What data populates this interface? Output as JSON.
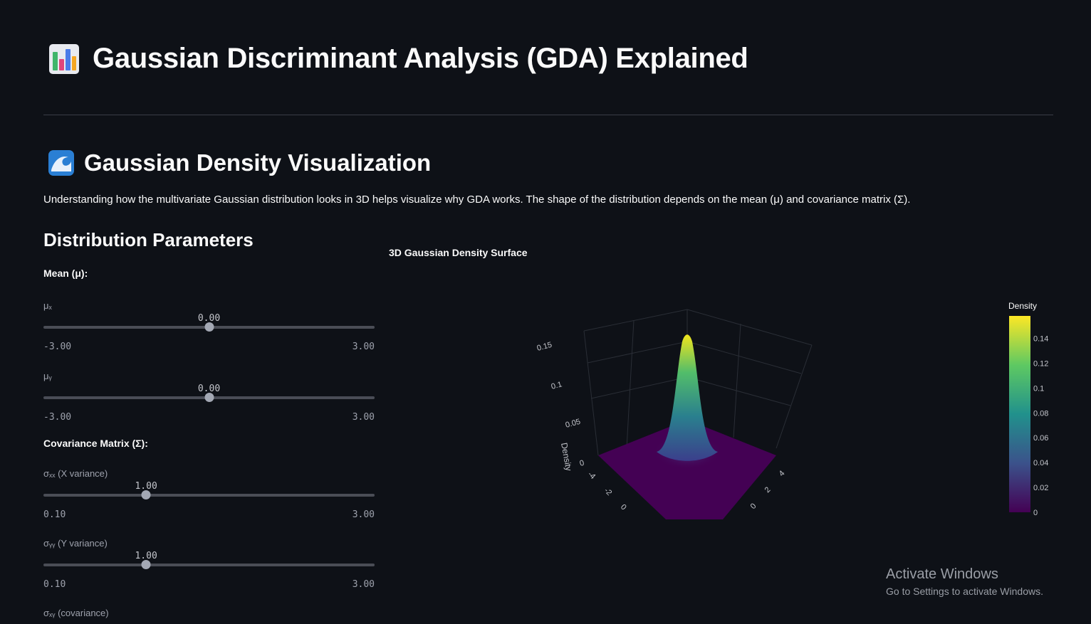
{
  "header": {
    "title": "Gaussian Discriminant Analysis (GDA) Explained",
    "icon": "bar-chart-icon"
  },
  "section": {
    "title": "Gaussian Density Visualization",
    "icon": "ocean-wave-icon",
    "intro": "Understanding how the multivariate Gaussian distribution looks in 3D helps visualize why GDA works. The shape of the distribution depends on the mean (μ) and covariance matrix (Σ)."
  },
  "params": {
    "title": "Distribution Parameters",
    "mean_heading": "Mean (μ):",
    "cov_heading": "Covariance Matrix (Σ):",
    "sliders": {
      "mu_x": {
        "label": "μₓ",
        "value": "0.00",
        "min": "-3.00",
        "max": "3.00",
        "fraction": 0.5
      },
      "mu_y": {
        "label": "μᵧ",
        "value": "0.00",
        "min": "-3.00",
        "max": "3.00",
        "fraction": 0.5
      },
      "sxx": {
        "label": "σₓₓ (X variance)",
        "value": "1.00",
        "min": "0.10",
        "max": "3.00",
        "fraction": 0.31
      },
      "syy": {
        "label": "σᵧᵧ (Y variance)",
        "value": "1.00",
        "min": "0.10",
        "max": "3.00",
        "fraction": 0.31
      },
      "sxy": {
        "label": "σₓᵧ (covariance)"
      }
    }
  },
  "chart_data": {
    "type": "surface",
    "title": "3D Gaussian Density Surface",
    "zlabel": "Density",
    "z_ticks": [
      "0",
      "0.05",
      "0.1",
      "0.15"
    ],
    "x_ticks": [
      "-4",
      "-2",
      "0"
    ],
    "y_ticks": [
      "4",
      "2",
      "0"
    ],
    "peak_density": 0.159,
    "colorbar": {
      "title": "Density",
      "ticks": [
        "0",
        "0.02",
        "0.04",
        "0.06",
        "0.08",
        "0.1",
        "0.12",
        "0.14"
      ],
      "colorscale": "viridis",
      "colors": [
        "#440154",
        "#3b528b",
        "#21918c",
        "#5ec962",
        "#fde725"
      ]
    }
  },
  "watermark": {
    "line1": "Activate Windows",
    "line2": "Go to Settings to activate Windows."
  }
}
